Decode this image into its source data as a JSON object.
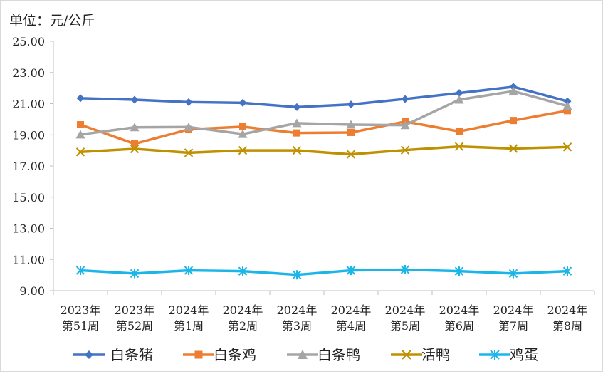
{
  "chart_data": {
    "type": "line",
    "unit_label": "单位：元/公斤",
    "categories": [
      [
        "2023年",
        "第51周"
      ],
      [
        "2023年",
        "第52周"
      ],
      [
        "2024年",
        "第1周"
      ],
      [
        "2024年",
        "第2周"
      ],
      [
        "2024年",
        "第3周"
      ],
      [
        "2024年",
        "第4周"
      ],
      [
        "2024年",
        "第5周"
      ],
      [
        "2024年",
        "第6周"
      ],
      [
        "2024年",
        "第7周"
      ],
      [
        "2024年",
        "第8周"
      ]
    ],
    "ylim": [
      9.0,
      25.0
    ],
    "yticks": [
      "9.00",
      "11.00",
      "13.00",
      "15.00",
      "17.00",
      "19.00",
      "21.00",
      "23.00",
      "25.00"
    ],
    "grid": false,
    "legend_position": "bottom",
    "series": [
      {
        "name": "白条猪",
        "color": "#4472C4",
        "marker": "diamond",
        "values": [
          21.35,
          21.25,
          21.1,
          21.05,
          20.78,
          20.95,
          21.3,
          21.68,
          22.08,
          21.15
        ]
      },
      {
        "name": "白条鸡",
        "color": "#ED7D31",
        "marker": "square",
        "values": [
          19.65,
          18.42,
          19.35,
          19.52,
          19.12,
          19.15,
          19.85,
          19.22,
          19.92,
          20.55
        ]
      },
      {
        "name": "白条鸭",
        "color": "#A5A5A5",
        "marker": "triangle",
        "values": [
          19.02,
          19.48,
          19.5,
          19.05,
          19.75,
          19.65,
          19.62,
          21.25,
          21.8,
          20.85
        ]
      },
      {
        "name": "活鸭",
        "color": "#BF9000",
        "marker": "x",
        "values": [
          17.9,
          18.1,
          17.85,
          18.0,
          18.0,
          17.75,
          18.02,
          18.25,
          18.12,
          18.22
        ]
      },
      {
        "name": "鸡蛋",
        "color": "#1CB5E8",
        "marker": "asterisk",
        "values": [
          10.3,
          10.1,
          10.3,
          10.25,
          10.02,
          10.3,
          10.35,
          10.25,
          10.1,
          10.25
        ]
      }
    ]
  }
}
